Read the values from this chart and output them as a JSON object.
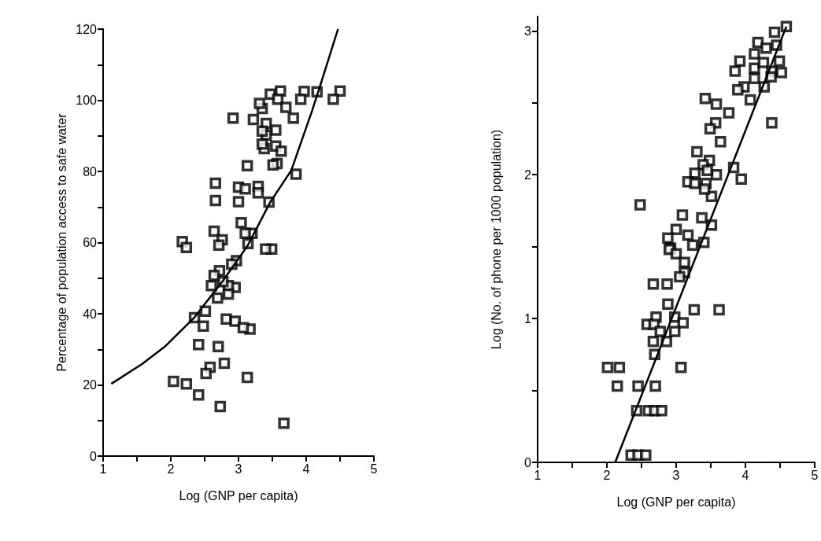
{
  "chart_data": [
    {
      "type": "scatter",
      "xlabel": "Log (GNP per capita)",
      "ylabel": "Percentage of population access to safe water",
      "xlim": [
        1,
        5
      ],
      "ylim": [
        0,
        120
      ],
      "marker": "square",
      "grid": false,
      "xticks": [
        1,
        {
          "value": 1.5,
          "label": null
        },
        2,
        {
          "value": 2.5,
          "label": null
        },
        3,
        {
          "value": 3.5,
          "label": null
        },
        4,
        {
          "value": 4.5,
          "label": null
        },
        5
      ],
      "yticks": [
        0,
        {
          "value": 10,
          "label": null
        },
        20,
        {
          "value": 30,
          "label": null
        },
        40,
        {
          "value": 50,
          "label": null
        },
        60,
        {
          "value": 70,
          "label": null
        },
        80,
        {
          "value": 90,
          "label": null
        },
        100,
        {
          "value": 110,
          "label": null
        },
        120
      ],
      "series": [
        {
          "color": "#000000",
          "x": [
            3.62,
            3.47,
            3.58,
            3.97,
            3.92,
            4.16,
            4.5,
            4.4,
            3.7,
            3.81,
            3.35,
            3.31,
            2.92,
            3.22,
            3.41,
            3.55,
            3.41,
            3.35,
            3.38,
            3.35,
            3.55,
            3.63,
            3.57,
            3.51,
            3.13,
            3.85,
            2.66,
            2.66,
            3.0,
            3.1,
            3.29,
            3.29,
            3.0,
            3.45,
            3.04,
            3.2,
            3.1,
            2.64,
            2.76,
            2.17,
            2.23,
            2.71,
            3.14,
            3.49,
            3.4,
            2.97,
            2.9,
            2.72,
            2.64,
            2.6,
            2.95,
            2.85,
            2.77,
            2.85,
            2.69,
            2.51,
            2.35,
            2.48,
            2.82,
            2.95,
            3.17,
            3.07,
            2.41,
            2.7,
            2.79,
            2.58,
            2.52,
            3.13,
            2.04,
            2.23,
            2.41,
            2.73,
            3.67
          ],
          "values": [
            102.6,
            101.7,
            100.3,
            102.5,
            100.3,
            102.4,
            102.6,
            100.3,
            98.0,
            95.0,
            97.7,
            99.1,
            95.0,
            94.6,
            93.5,
            91.6,
            90.2,
            91.3,
            86.4,
            87.7,
            87.1,
            85.7,
            82.2,
            81.8,
            81.6,
            79.2,
            76.7,
            71.8,
            75.6,
            75.1,
            75.8,
            74.0,
            71.5,
            71.4,
            65.6,
            62.6,
            62.6,
            63.2,
            60.8,
            60.3,
            58.6,
            59.3,
            59.7,
            58.2,
            58.2,
            54.9,
            53.9,
            52.1,
            50.8,
            47.9,
            47.4,
            47.9,
            49.0,
            45.5,
            44.4,
            40.7,
            38.9,
            36.5,
            38.5,
            37.9,
            35.7,
            36.1,
            31.3,
            30.8,
            26.1,
            25.0,
            23.2,
            22.1,
            21.0,
            20.3,
            17.2,
            13.9,
            9.2
          ]
        },
        {
          "type": "line",
          "color": "#000000",
          "marker": "none",
          "x": [
            1.12,
            1.57,
            1.92,
            2.35,
            2.77,
            3.14,
            3.47,
            3.78,
            4.09,
            4.24,
            4.47
          ],
          "values": [
            20.3,
            25.8,
            30.9,
            39.0,
            49.3,
            59.3,
            71.4,
            80.3,
            97.2,
            106.1,
            120
          ]
        }
      ]
    },
    {
      "type": "scatter",
      "xlabel": "Log (GNP per capita)",
      "ylabel": "Log (No. of phone per 1000 population)",
      "xlim": [
        1,
        5
      ],
      "ylim": [
        0,
        3.1
      ],
      "marker": "square",
      "grid": false,
      "xticks": [
        1,
        {
          "value": 1.5,
          "label": null
        },
        2,
        {
          "value": 2.5,
          "label": null
        },
        3,
        {
          "value": 3.5,
          "label": null
        },
        4,
        {
          "value": 4.5,
          "label": null
        },
        5
      ],
      "yticks": [
        0,
        {
          "value": 0.5,
          "label": null
        },
        1,
        {
          "value": 1.5,
          "label": null
        },
        2,
        {
          "value": 2.5,
          "label": null
        },
        3
      ],
      "series": [
        {
          "color": "#000000",
          "x": [
            4.59,
            4.42,
            4.45,
            4.18,
            4.3,
            4.13,
            4.49,
            3.92,
            3.85,
            4.13,
            4.26,
            4.38,
            4.52,
            4.13,
            4.37,
            4.27,
            3.98,
            3.89,
            4.07,
            3.42,
            3.58,
            3.76,
            4.38,
            3.57,
            3.49,
            3.64,
            3.3,
            3.48,
            3.83,
            3.94,
            3.58,
            3.39,
            3.27,
            3.17,
            3.27,
            3.43,
            3.45,
            3.51,
            3.41,
            2.48,
            3.09,
            3.37,
            3.51,
            3.0,
            3.17,
            2.88,
            3.4,
            3.24,
            2.92,
            2.9,
            3.0,
            3.12,
            3.12,
            3.05,
            2.67,
            2.87,
            2.88,
            3.26,
            3.62,
            2.71,
            2.98,
            2.58,
            2.68,
            3.1,
            2.77,
            2.98,
            2.67,
            2.86,
            2.69,
            2.01,
            2.18,
            3.07,
            2.15,
            2.45,
            2.7,
            2.43,
            2.6,
            2.69,
            2.79,
            2.35,
            2.45,
            2.56
          ],
          "values": [
            3.03,
            2.99,
            2.9,
            2.92,
            2.88,
            2.84,
            2.79,
            2.79,
            2.72,
            2.74,
            2.78,
            2.72,
            2.71,
            2.67,
            2.68,
            2.61,
            2.61,
            2.59,
            2.52,
            2.53,
            2.49,
            2.43,
            2.36,
            2.36,
            2.32,
            2.23,
            2.16,
            2.1,
            2.05,
            1.97,
            2.0,
            2.07,
            2.01,
            1.95,
            1.94,
            1.94,
            2.03,
            1.85,
            1.9,
            1.79,
            1.72,
            1.7,
            1.65,
            1.62,
            1.58,
            1.56,
            1.53,
            1.51,
            1.49,
            1.48,
            1.45,
            1.39,
            1.32,
            1.29,
            1.24,
            1.24,
            1.1,
            1.06,
            1.06,
            1.01,
            1.01,
            0.96,
            0.96,
            0.97,
            0.91,
            0.91,
            0.84,
            0.84,
            0.75,
            0.66,
            0.66,
            0.66,
            0.53,
            0.53,
            0.53,
            0.36,
            0.36,
            0.36,
            0.36,
            0.05,
            0.05,
            0.05
          ]
        },
        {
          "type": "line",
          "color": "#000000",
          "marker": "none",
          "x": [
            2.12,
            4.59
          ],
          "values": [
            0,
            3.03
          ]
        }
      ]
    }
  ]
}
